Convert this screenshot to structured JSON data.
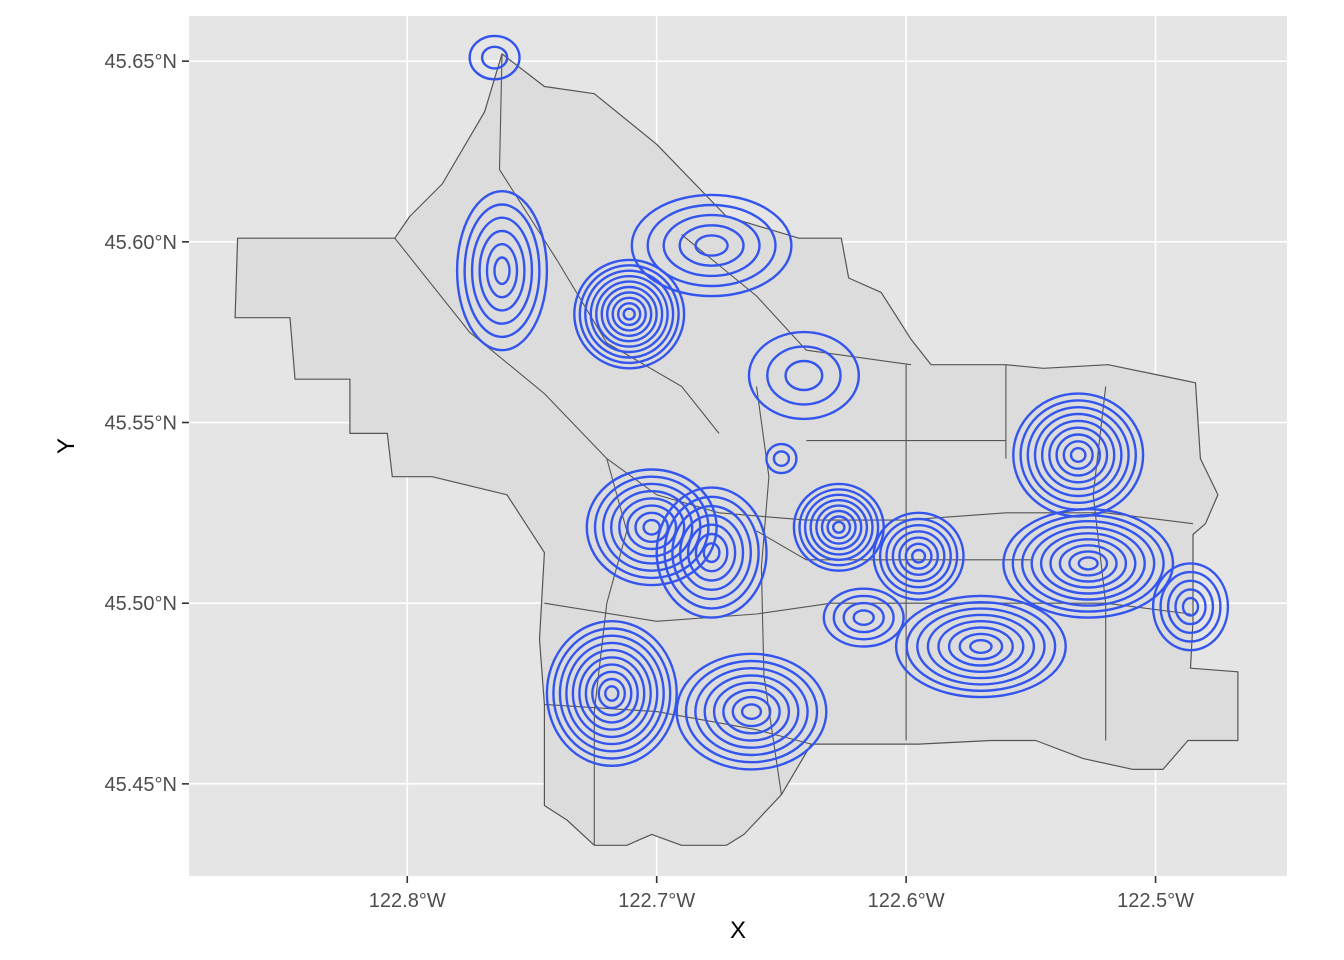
{
  "chart_data": {
    "type": "contour",
    "xlabel": "X",
    "ylabel": "Y",
    "xlim": [
      -122.8875,
      -122.4473
    ],
    "ylim": [
      45.4245,
      45.6625
    ],
    "x_ticks": [
      {
        "value": -122.8,
        "label": "122.8°W"
      },
      {
        "value": -122.7,
        "label": "122.7°W"
      },
      {
        "value": -122.6,
        "label": "122.6°W"
      },
      {
        "value": -122.5,
        "label": "122.5°W"
      }
    ],
    "y_ticks": [
      {
        "value": 45.45,
        "label": "45.45°N"
      },
      {
        "value": 45.5,
        "label": "45.50°N"
      },
      {
        "value": 45.55,
        "label": "45.55°N"
      },
      {
        "value": 45.6,
        "label": "45.60°N"
      },
      {
        "value": 45.65,
        "label": "45.65°N"
      }
    ],
    "grid": true,
    "colors": {
      "panel": "#e5e5e5",
      "contour": "#3355ee",
      "boundary_fill": "#dcdcdc",
      "boundary_stroke": "#555555"
    },
    "boundary": [
      [
        -122.868,
        45.601
      ],
      [
        -122.805,
        45.601
      ],
      [
        -122.799,
        45.607
      ],
      [
        -122.786,
        45.616
      ],
      [
        -122.769,
        45.636
      ],
      [
        -122.762,
        45.652
      ],
      [
        -122.745,
        45.643
      ],
      [
        -122.725,
        45.641
      ],
      [
        -122.7,
        45.627
      ],
      [
        -122.672,
        45.607
      ],
      [
        -122.643,
        45.601
      ],
      [
        -122.626,
        45.601
      ],
      [
        -122.623,
        45.59
      ],
      [
        -122.61,
        45.586
      ],
      [
        -122.598,
        45.573
      ],
      [
        -122.59,
        45.566
      ],
      [
        -122.56,
        45.566
      ],
      [
        -122.545,
        45.565
      ],
      [
        -122.519,
        45.566
      ],
      [
        -122.498,
        45.563
      ],
      [
        -122.484,
        45.561
      ],
      [
        -122.482,
        45.54
      ],
      [
        -122.475,
        45.53
      ],
      [
        -122.48,
        45.522
      ],
      [
        -122.485,
        45.519
      ],
      [
        -122.485,
        45.495
      ],
      [
        -122.486,
        45.482
      ],
      [
        -122.467,
        45.481
      ],
      [
        -122.467,
        45.462
      ],
      [
        -122.487,
        45.462
      ],
      [
        -122.497,
        45.454
      ],
      [
        -122.509,
        45.454
      ],
      [
        -122.529,
        45.457
      ],
      [
        -122.548,
        45.462
      ],
      [
        -122.566,
        45.462
      ],
      [
        -122.595,
        45.461
      ],
      [
        -122.62,
        45.461
      ],
      [
        -122.638,
        45.461
      ],
      [
        -122.65,
        45.447
      ],
      [
        -122.665,
        45.436
      ],
      [
        -122.672,
        45.433
      ],
      [
        -122.69,
        45.433
      ],
      [
        -122.702,
        45.436
      ],
      [
        -122.712,
        45.433
      ],
      [
        -122.725,
        45.433
      ],
      [
        -122.736,
        45.44
      ],
      [
        -122.745,
        45.444
      ],
      [
        -122.745,
        45.472
      ],
      [
        -122.747,
        45.49
      ],
      [
        -122.745,
        45.514
      ],
      [
        -122.76,
        45.53
      ],
      [
        -122.79,
        45.535
      ],
      [
        -122.806,
        45.535
      ],
      [
        -122.808,
        45.547
      ],
      [
        -122.823,
        45.547
      ],
      [
        -122.823,
        45.562
      ],
      [
        -122.845,
        45.562
      ],
      [
        -122.847,
        45.579
      ],
      [
        -122.869,
        45.579
      ]
    ],
    "inner_lines": [
      [
        [
          -122.762,
          45.652
        ],
        [
          -122.763,
          45.62
        ],
        [
          -122.74,
          45.595
        ],
        [
          -122.72,
          45.572
        ]
      ],
      [
        [
          -122.805,
          45.601
        ],
        [
          -122.775,
          45.575
        ],
        [
          -122.745,
          45.558
        ],
        [
          -122.72,
          45.54
        ]
      ],
      [
        [
          -122.72,
          45.572
        ],
        [
          -122.69,
          45.56
        ],
        [
          -122.675,
          45.547
        ]
      ],
      [
        [
          -122.69,
          45.602
        ],
        [
          -122.66,
          45.585
        ],
        [
          -122.64,
          45.57
        ],
        [
          -122.598,
          45.566
        ]
      ],
      [
        [
          -122.72,
          45.54
        ],
        [
          -122.7,
          45.53
        ],
        [
          -122.675,
          45.525
        ],
        [
          -122.64,
          45.523
        ],
        [
          -122.6,
          45.523
        ],
        [
          -122.56,
          45.525
        ],
        [
          -122.52,
          45.525
        ],
        [
          -122.485,
          45.522
        ]
      ],
      [
        [
          -122.66,
          45.56
        ],
        [
          -122.655,
          45.535
        ],
        [
          -122.658,
          45.51
        ],
        [
          -122.657,
          45.48
        ],
        [
          -122.65,
          45.447
        ]
      ],
      [
        [
          -122.6,
          45.566
        ],
        [
          -122.6,
          45.54
        ],
        [
          -122.6,
          45.5
        ],
        [
          -122.6,
          45.462
        ]
      ],
      [
        [
          -122.56,
          45.566
        ],
        [
          -122.56,
          45.54
        ]
      ],
      [
        [
          -122.52,
          45.56
        ],
        [
          -122.525,
          45.53
        ],
        [
          -122.52,
          45.5
        ],
        [
          -122.52,
          45.462
        ]
      ],
      [
        [
          -122.745,
          45.5
        ],
        [
          -122.7,
          45.495
        ],
        [
          -122.66,
          45.497
        ],
        [
          -122.63,
          45.5
        ],
        [
          -122.6,
          45.5
        ],
        [
          -122.56,
          45.5
        ],
        [
          -122.52,
          45.5
        ],
        [
          -122.486,
          45.497
        ]
      ],
      [
        [
          -122.745,
          45.472
        ],
        [
          -122.7,
          45.47
        ],
        [
          -122.66,
          45.465
        ],
        [
          -122.638,
          45.461
        ]
      ],
      [
        [
          -122.72,
          45.54
        ],
        [
          -122.712,
          45.52
        ],
        [
          -122.72,
          45.5
        ],
        [
          -122.725,
          45.47
        ],
        [
          -122.725,
          45.433
        ]
      ],
      [
        [
          -122.64,
          45.545
        ],
        [
          -122.62,
          45.545
        ],
        [
          -122.6,
          45.545
        ],
        [
          -122.56,
          45.545
        ]
      ],
      [
        [
          -122.66,
          45.52
        ],
        [
          -122.64,
          45.512
        ],
        [
          -122.61,
          45.512
        ],
        [
          -122.58,
          45.512
        ],
        [
          -122.55,
          45.512
        ]
      ]
    ],
    "density_peaks": [
      {
        "x": -122.711,
        "y": 45.58,
        "rings": 10,
        "rx": 0.022,
        "ry": 0.015
      },
      {
        "x": -122.762,
        "y": 45.592,
        "rings": 6,
        "rx": 0.018,
        "ry": 0.022
      },
      {
        "x": -122.678,
        "y": 45.599,
        "rings": 5,
        "rx": 0.032,
        "ry": 0.014
      },
      {
        "x": -122.765,
        "y": 45.651,
        "rings": 2,
        "rx": 0.01,
        "ry": 0.006
      },
      {
        "x": -122.702,
        "y": 45.521,
        "rings": 8,
        "rx": 0.026,
        "ry": 0.016
      },
      {
        "x": -122.678,
        "y": 45.514,
        "rings": 7,
        "rx": 0.022,
        "ry": 0.018
      },
      {
        "x": -122.627,
        "y": 45.521,
        "rings": 8,
        "rx": 0.018,
        "ry": 0.012
      },
      {
        "x": -122.595,
        "y": 45.513,
        "rings": 7,
        "rx": 0.018,
        "ry": 0.012
      },
      {
        "x": -122.531,
        "y": 45.541,
        "rings": 9,
        "rx": 0.026,
        "ry": 0.017
      },
      {
        "x": -122.527,
        "y": 45.511,
        "rings": 9,
        "rx": 0.034,
        "ry": 0.015
      },
      {
        "x": -122.57,
        "y": 45.488,
        "rings": 8,
        "rx": 0.034,
        "ry": 0.014
      },
      {
        "x": -122.718,
        "y": 45.475,
        "rings": 10,
        "rx": 0.026,
        "ry": 0.02
      },
      {
        "x": -122.662,
        "y": 45.47,
        "rings": 8,
        "rx": 0.03,
        "ry": 0.016
      },
      {
        "x": -122.617,
        "y": 45.496,
        "rings": 4,
        "rx": 0.016,
        "ry": 0.008
      },
      {
        "x": -122.486,
        "y": 45.499,
        "rings": 5,
        "rx": 0.015,
        "ry": 0.012
      },
      {
        "x": -122.641,
        "y": 45.563,
        "rings": 3,
        "rx": 0.022,
        "ry": 0.012
      },
      {
        "x": -122.65,
        "y": 45.54,
        "rings": 2,
        "rx": 0.006,
        "ry": 0.004
      }
    ]
  }
}
